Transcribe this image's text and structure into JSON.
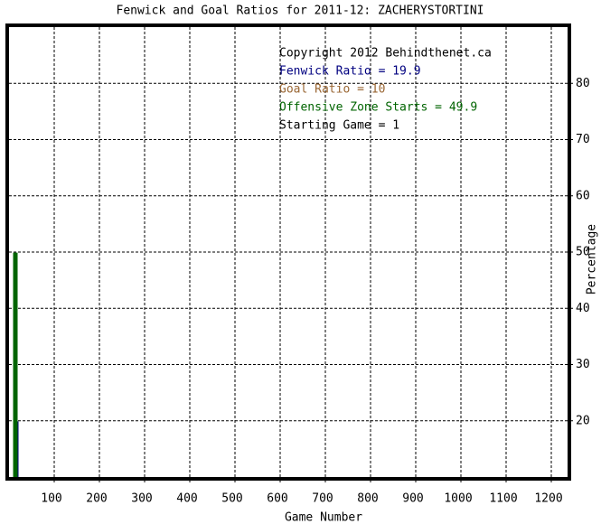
{
  "chart_data": {
    "type": "bar",
    "title": "Fenwick and Goal Ratios for 2011-12: ZACHERYSTORTINI",
    "x_label": "Game Number",
    "y_label": "Percentage",
    "annotations": [
      "Copyright 2012 Behindthenet.ca",
      "Starting Game = 1"
    ],
    "x": [
      1
    ],
    "series": [
      {
        "name": "Fenwick Ratio = 19.9",
        "color": "#000080",
        "values": [
          19.9
        ]
      },
      {
        "name": "Goal Ratio = 10",
        "color": "#996633",
        "values": [
          10
        ]
      },
      {
        "name": "Offensive Zone Starts = 49.9",
        "color": "#006400",
        "values": [
          49.9
        ]
      }
    ],
    "xlim": [
      0,
      1236
    ],
    "xticks": [
      100,
      200,
      300,
      400,
      500,
      600,
      700,
      800,
      900,
      1000,
      1100,
      1200
    ],
    "ylim": [
      10,
      90
    ],
    "yticks": [
      20,
      30,
      40,
      50,
      60,
      70,
      80
    ],
    "grid": true
  }
}
